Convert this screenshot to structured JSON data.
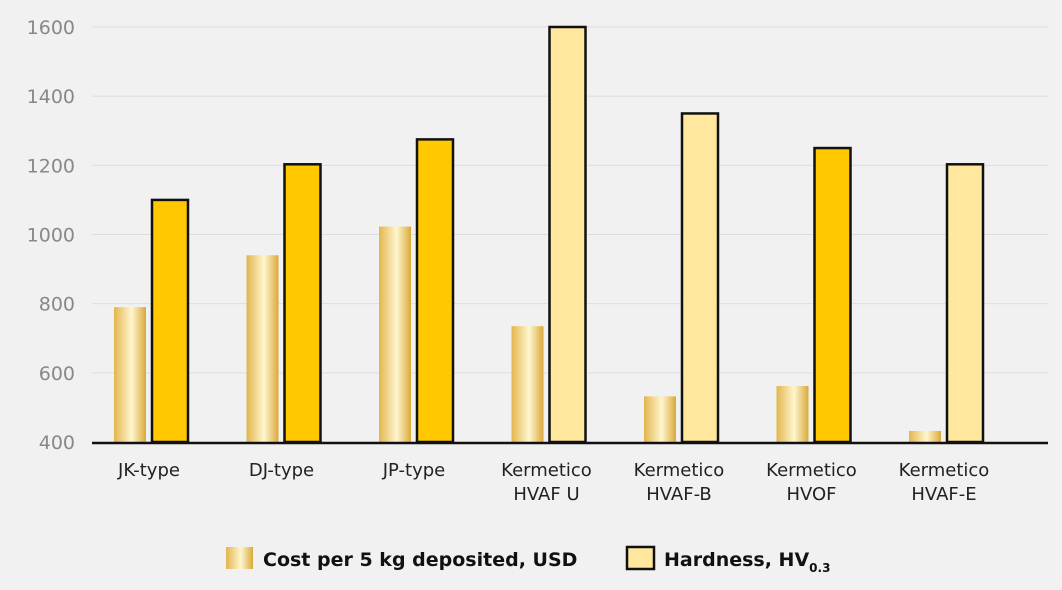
{
  "chart_data": {
    "type": "bar",
    "categories": [
      [
        "JK-type"
      ],
      [
        "DJ-type"
      ],
      [
        "JP-type"
      ],
      [
        "Kermetico",
        "HVAF U"
      ],
      [
        "Kermetico",
        "HVAF-B"
      ],
      [
        "Kermetico",
        "HVOF"
      ],
      [
        "Kermetico",
        "HVAF-E"
      ]
    ],
    "series": [
      {
        "name": "Cost per 5 kg deposited, USD",
        "values": [
          790,
          940,
          1023,
          735,
          532,
          562,
          432
        ]
      },
      {
        "name": "Hardness, HV",
        "name_subscript": "0.3",
        "values": [
          1100,
          1203,
          1275,
          1600,
          1350,
          1250,
          1203
        ]
      }
    ],
    "hardness_highlight": [
      true,
      true,
      true,
      false,
      false,
      true,
      false
    ],
    "ylim": [
      400,
      1600
    ],
    "yticks": [
      "400",
      "600",
      "800",
      "1000",
      "1200",
      "1400",
      "1600"
    ],
    "grid": true,
    "legend_position": "bottom",
    "colors": {
      "hardness_strong": "#ffc800",
      "hardness_light": "#ffe79e",
      "cost_gradient": [
        "#e8c265",
        "#fff7cf",
        "#d9a93a"
      ],
      "grid": "#dddddd",
      "axis": "#111111"
    }
  }
}
